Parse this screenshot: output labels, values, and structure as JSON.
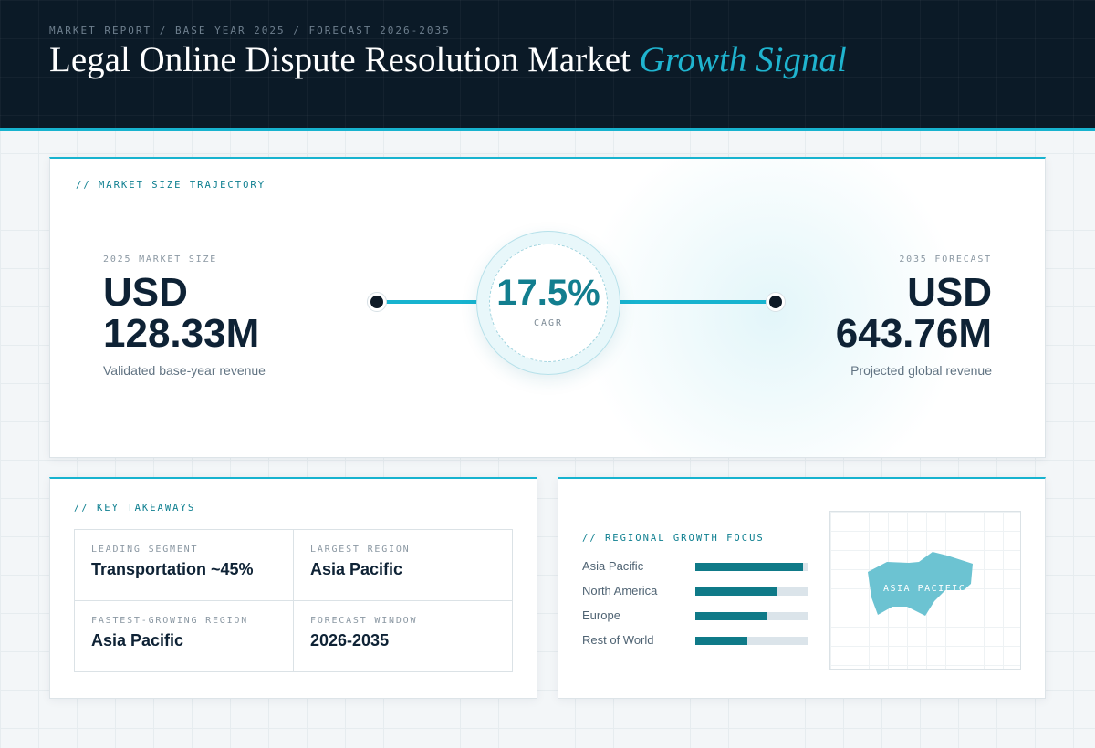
{
  "header": {
    "eyebrow": "MARKET REPORT / BASE YEAR 2025 / FORECAST 2026-2035",
    "title": "Legal Online Dispute Resolution Market",
    "title_accent": "Growth Signal"
  },
  "trajectory": {
    "section_label": "// MARKET SIZE TRAJECTORY",
    "base": {
      "label": "2025 MARKET SIZE",
      "currency": "USD",
      "value": "128.33M",
      "note": "Validated base-year revenue"
    },
    "forecast": {
      "label": "2035 FORECAST",
      "currency": "USD",
      "value": "643.76M",
      "note": "Projected global revenue"
    },
    "cagr": {
      "value": "17.5%",
      "label": "CAGR"
    }
  },
  "takeaways": {
    "section_label": "// KEY TAKEAWAYS",
    "items": [
      {
        "label": "LEADING SEGMENT",
        "value": "Transportation ~45%"
      },
      {
        "label": "LARGEST REGION",
        "value": "Asia Pacific"
      },
      {
        "label": "FASTEST-GROWING REGION",
        "value": "Asia Pacific"
      },
      {
        "label": "FORECAST WINDOW",
        "value": "2026-2035"
      }
    ]
  },
  "regional": {
    "section_label": "// REGIONAL GROWTH FOCUS",
    "bars": [
      {
        "name": "Asia Pacific",
        "level": 0.96
      },
      {
        "name": "North America",
        "level": 0.72
      },
      {
        "name": "Europe",
        "level": 0.64
      },
      {
        "name": "Rest of World",
        "level": 0.46
      }
    ],
    "map_label": "ASIA PACIFIC",
    "colors": {
      "bar_fill": "#0f7a88",
      "bar_track": "#dbe4ea",
      "map_region": "#6cc3d2"
    }
  },
  "colors": {
    "accent": "#17b3cf",
    "header_bg": "#0b1a27",
    "text_dark": "#0e2235"
  }
}
